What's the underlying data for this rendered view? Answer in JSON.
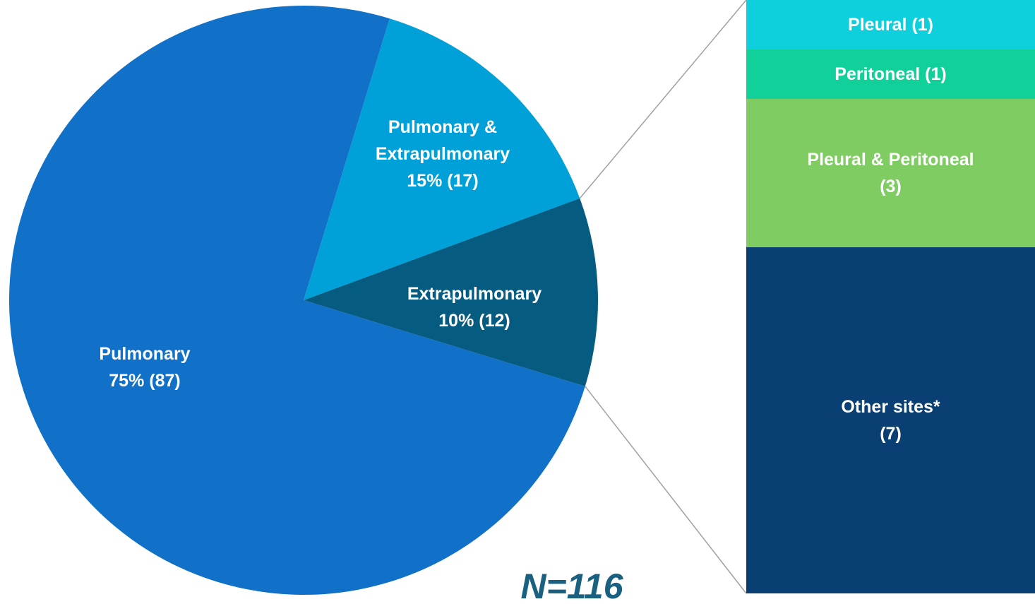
{
  "chart_data": {
    "type": "pie",
    "categories": [
      "Pulmonary",
      "Pulmonary & Extrapulmonary",
      "Extrapulmonary"
    ],
    "values": [
      87,
      17,
      12
    ],
    "value_labels": [
      "75% (87)",
      "15% (17)",
      "10% (12)"
    ],
    "colors": [
      "#1170c8",
      "#00a0d8",
      "#065b80"
    ],
    "annotation": "N=116",
    "breakdown": {
      "of": "Extrapulmonary",
      "categories": [
        "Pleural",
        "Peritoneal",
        "Pleural & Peritoneal",
        "Other sites*"
      ],
      "values": [
        1,
        1,
        3,
        7
      ],
      "value_labels": [
        "(1)",
        "(1)",
        "(3)",
        "(7)"
      ],
      "colors": [
        "#0ecfdc",
        "#12d09a",
        "#7fcc62",
        "#0a3f74"
      ]
    }
  }
}
